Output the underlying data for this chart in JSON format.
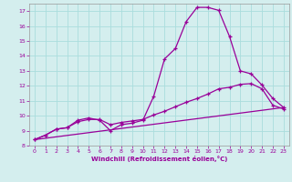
{
  "xlabel": "Windchill (Refroidissement éolien,°C)",
  "background_color": "#d4eeee",
  "grid_color": "#aadddd",
  "line_color": "#990099",
  "xlim": [
    -0.5,
    23.5
  ],
  "ylim": [
    8,
    17.5
  ],
  "xticks": [
    0,
    1,
    2,
    3,
    4,
    5,
    6,
    7,
    8,
    9,
    10,
    11,
    12,
    13,
    14,
    15,
    16,
    17,
    18,
    19,
    20,
    21,
    22,
    23
  ],
  "yticks": [
    8,
    9,
    10,
    11,
    12,
    13,
    14,
    15,
    16,
    17
  ],
  "line1_x": [
    0,
    1,
    2,
    3,
    4,
    5,
    6,
    7,
    8,
    9,
    10,
    11,
    12,
    13,
    14,
    15,
    16,
    17,
    18,
    19,
    20,
    21,
    22,
    23
  ],
  "line1_y": [
    8.4,
    8.7,
    9.1,
    9.2,
    9.7,
    9.85,
    9.7,
    9.0,
    9.4,
    9.5,
    9.7,
    11.3,
    13.8,
    14.5,
    16.3,
    17.25,
    17.25,
    17.05,
    15.3,
    13.0,
    12.8,
    12.05,
    11.15,
    10.55
  ],
  "line2_x": [
    0,
    1,
    2,
    3,
    4,
    5,
    6,
    7,
    8,
    9,
    10,
    11,
    12,
    13,
    14,
    15,
    16,
    17,
    18,
    19,
    20,
    21,
    22,
    23
  ],
  "line2_y": [
    8.4,
    8.7,
    9.1,
    9.2,
    9.6,
    9.75,
    9.75,
    9.4,
    9.55,
    9.65,
    9.75,
    10.05,
    10.3,
    10.6,
    10.9,
    11.15,
    11.45,
    11.8,
    11.9,
    12.1,
    12.15,
    11.8,
    10.7,
    10.45
  ],
  "line3_x": [
    0,
    23
  ],
  "line3_y": [
    8.4,
    10.55
  ],
  "marker_style": "+"
}
